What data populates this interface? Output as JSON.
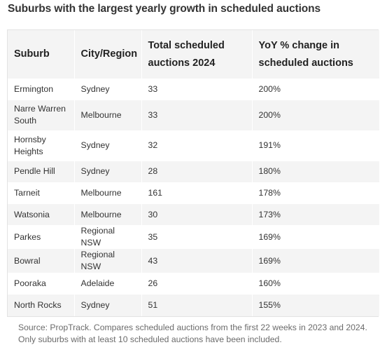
{
  "title": "Suburbs with the largest yearly growth in scheduled auctions",
  "table": {
    "headers": [
      "Suburb",
      "City/Region",
      "Total scheduled auctions 2024",
      "YoY % change in scheduled auctions"
    ],
    "rows": [
      {
        "suburb": "Ermington",
        "region": "Sydney",
        "total": "33",
        "change": "200%"
      },
      {
        "suburb": "Narre Warren South",
        "region": "Melbourne",
        "total": "33",
        "change": "200%"
      },
      {
        "suburb": "Hornsby Heights",
        "region": "Sydney",
        "total": "32",
        "change": "191%"
      },
      {
        "suburb": "Pendle Hill",
        "region": "Sydney",
        "total": "28",
        "change": "180%"
      },
      {
        "suburb": "Tarneit",
        "region": "Melbourne",
        "total": "161",
        "change": "178%"
      },
      {
        "suburb": "Watsonia",
        "region": "Melbourne",
        "total": "30",
        "change": "173%"
      },
      {
        "suburb": "Parkes",
        "region": "Regional NSW",
        "total": "35",
        "change": "169%"
      },
      {
        "suburb": "Bowral",
        "region": "Regional NSW",
        "total": "43",
        "change": "169%"
      },
      {
        "suburb": "Pooraka",
        "region": "Adelaide",
        "total": "26",
        "change": "160%"
      },
      {
        "suburb": "North Rocks",
        "region": "Sydney",
        "total": "51",
        "change": "155%"
      }
    ]
  },
  "footnote": "Source: PropTrack. Compares scheduled auctions from the first 22 weeks in 2023 and 2024. Only suburbs with at least 10 scheduled auctions have been included."
}
